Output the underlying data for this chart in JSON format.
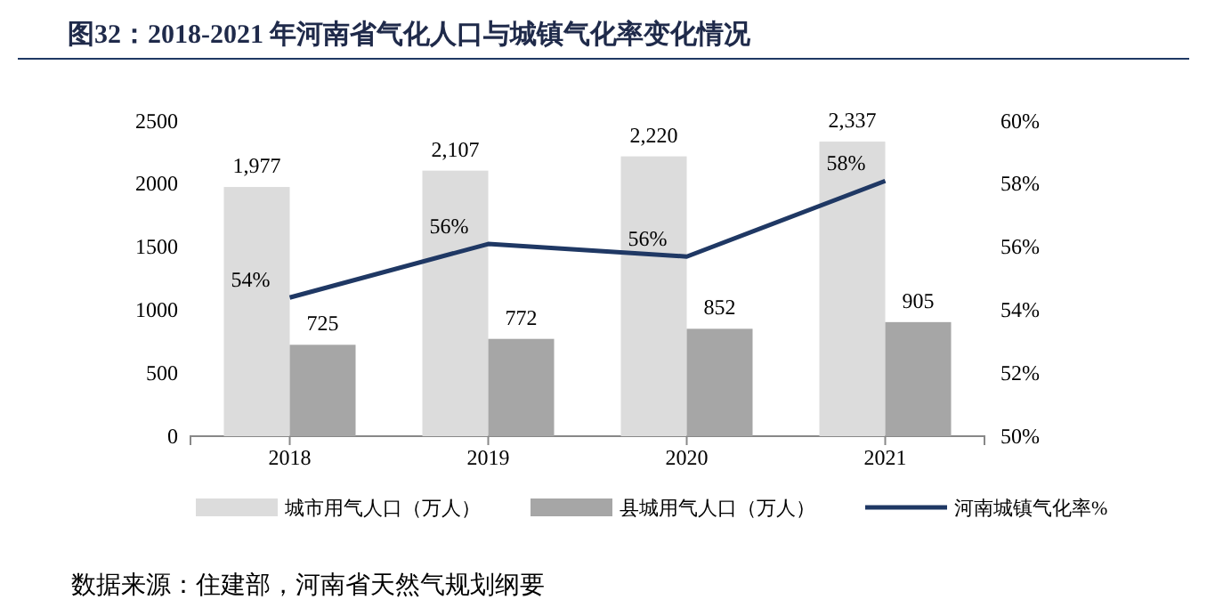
{
  "chart_data": {
    "type": "bar",
    "title": "图32：2018-2021 年河南省气化人口与城镇气化率变化情况",
    "categories": [
      "2018",
      "2019",
      "2020",
      "2021"
    ],
    "series": [
      {
        "name": "城市用气人口（万人）",
        "color": "#dcdcdc",
        "values": [
          1977,
          2107,
          2220,
          2337
        ],
        "value_labels": [
          "1,977",
          "2,107",
          "2,220",
          "2,337"
        ]
      },
      {
        "name": "县城用气人口（万人）",
        "color": "#a6a6a6",
        "values": [
          725,
          772,
          852,
          905
        ],
        "value_labels": [
          "725",
          "772",
          "852",
          "905"
        ]
      },
      {
        "name": "河南城镇气化率%",
        "type": "line",
        "axis": "y2",
        "color": "#1f3864",
        "values": [
          54.4,
          56.1,
          55.7,
          58.1
        ],
        "value_labels": [
          "54%",
          "56%",
          "56%",
          "58%"
        ]
      }
    ],
    "ylim": [
      0,
      2500
    ],
    "yticks": [
      0,
      500,
      1000,
      1500,
      2000,
      2500
    ],
    "y2lim": [
      50,
      60
    ],
    "y2ticks": [
      {
        "value": 50,
        "label": "50%"
      },
      {
        "value": 52,
        "label": "52%"
      },
      {
        "value": 54,
        "label": "54%"
      },
      {
        "value": 56,
        "label": "56%"
      },
      {
        "value": 58,
        "label": "58%"
      },
      {
        "value": 60,
        "label": "60%"
      }
    ],
    "grid": false,
    "legend": "bottom",
    "marker": "none",
    "line_style": "solid",
    "annotations": [
      "数据来源：住建部，河南省天然气规划纲要"
    ]
  }
}
